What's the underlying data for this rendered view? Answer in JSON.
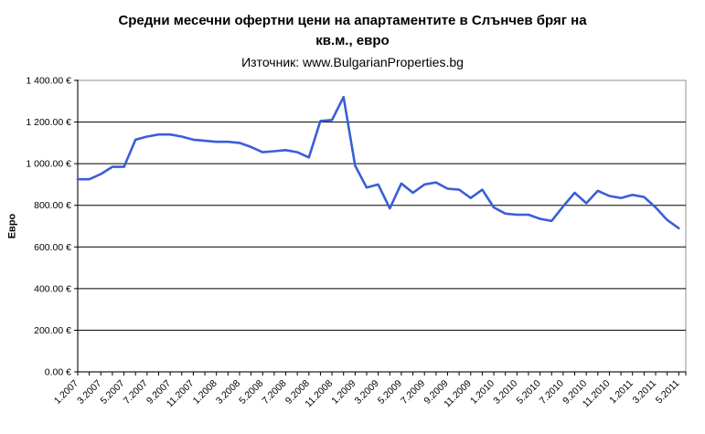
{
  "chart_data": {
    "type": "line",
    "title": "Средни месечни офертни цени на апартаментите в Слънчев бряг на кв.м., евро",
    "title_line1": "Средни месечни офертни цени на апартаментите в Слънчев бряг на",
    "title_line2": "кв.м., евро",
    "subtitle": "Източник: www.BulgarianProperties.bg",
    "ylabel": "Евро",
    "xlabel": "",
    "ylim": [
      0,
      1400
    ],
    "ytick_step": 200,
    "ytick_labels": [
      "0.00 €",
      "200.00 €",
      "400.00 €",
      "600.00 €",
      "800.00 €",
      "1 000.00 €",
      "1 200.00 €",
      "1 400.00 €"
    ],
    "xtick_every": 2,
    "grid": true,
    "legend": false,
    "series_color": "#3b5ed8",
    "x": [
      "1.2007",
      "2.2007",
      "3.2007",
      "4.2007",
      "5.2007",
      "6.2007",
      "7.2007",
      "8.2007",
      "9.2007",
      "10.2007",
      "11.2007",
      "12.2007",
      "1.2008",
      "2.2008",
      "3.2008",
      "4.2008",
      "5.2008",
      "6.2008",
      "7.2008",
      "8.2008",
      "9.2008",
      "10.2008",
      "11.2008",
      "12.2008",
      "1.2009",
      "2.2009",
      "3.2009",
      "4.2009",
      "5.2009",
      "6.2009",
      "7.2009",
      "8.2009",
      "9.2009",
      "10.2009",
      "11.2009",
      "12.2009",
      "1.2010",
      "2.2010",
      "3.2010",
      "4.2010",
      "5.2010",
      "6.2010",
      "7.2010",
      "8.2010",
      "9.2010",
      "10.2010",
      "11.2010",
      "12.2010",
      "1.2011",
      "2.2011",
      "3.2011",
      "4.2011",
      "5.2011"
    ],
    "values": [
      925,
      925,
      950,
      985,
      985,
      1115,
      1130,
      1140,
      1140,
      1130,
      1115,
      1110,
      1105,
      1105,
      1100,
      1080,
      1055,
      1060,
      1065,
      1055,
      1030,
      1205,
      1210,
      1320,
      990,
      885,
      900,
      785,
      905,
      860,
      900,
      910,
      880,
      875,
      835,
      875,
      790,
      760,
      755,
      755,
      735,
      725,
      795,
      860,
      810,
      870,
      845,
      835,
      850,
      840,
      790,
      730,
      690
    ]
  }
}
